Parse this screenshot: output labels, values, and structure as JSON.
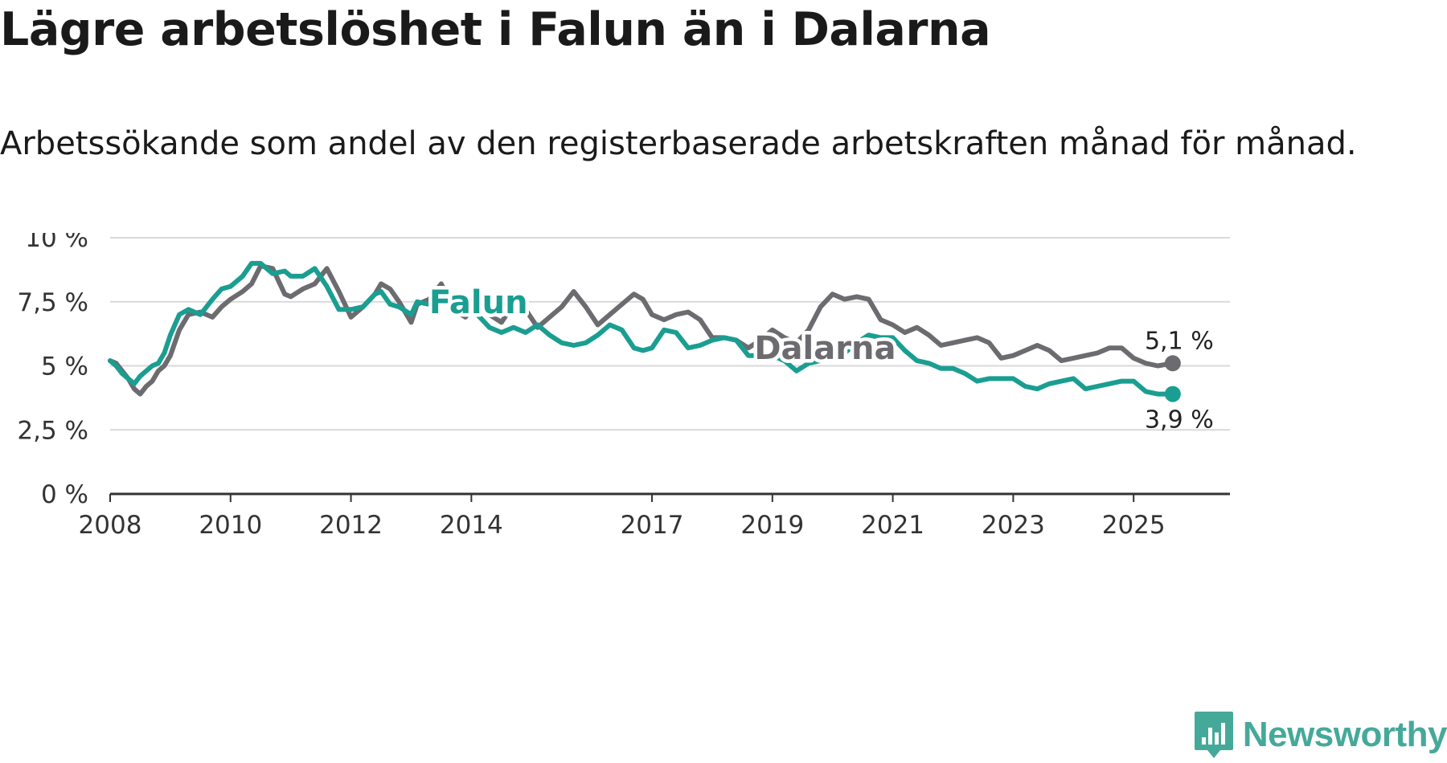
{
  "title": "Lägre arbetslöshet i Falun än i Dalarna",
  "subtitle": "Arbetssökande som andel av den registerbaserade arbetskraften månad för månad.",
  "brand": {
    "name": "Newsworthy",
    "color": "#45a99a",
    "icon": "newsworthy-logo-icon"
  },
  "chart_data": {
    "type": "line",
    "title": "Lägre arbetslöshet i Falun än i Dalarna",
    "xlabel": "",
    "ylabel": "",
    "ylim": [
      0,
      10
    ],
    "xlim": [
      2008,
      2026.6
    ],
    "grid": true,
    "y_ticks": [
      0,
      2.5,
      5,
      7.5,
      10
    ],
    "y_tick_labels": [
      "0 %",
      "2,5 %",
      "5 %",
      "7,5 %",
      "10 %"
    ],
    "x_ticks": [
      2008,
      2010,
      2012,
      2014,
      2017,
      2019,
      2021,
      2023,
      2025
    ],
    "x_tick_labels": [
      "2008",
      "2010",
      "2012",
      "2014",
      "2017",
      "2019",
      "2021",
      "2023",
      "2025"
    ],
    "series": [
      {
        "name": "Dalarna",
        "label": "Dalarna",
        "color": "#6b6b70",
        "end_label": "5,1 %",
        "x": [
          2008.0,
          2008.1,
          2008.2,
          2008.3,
          2008.4,
          2008.5,
          2008.6,
          2008.7,
          2008.8,
          2008.9,
          2009.0,
          2009.15,
          2009.3,
          2009.5,
          2009.7,
          2009.85,
          2010.0,
          2010.2,
          2010.35,
          2010.5,
          2010.7,
          2010.9,
          2011.0,
          2011.2,
          2011.4,
          2011.6,
          2011.8,
          2012.0,
          2012.2,
          2012.4,
          2012.5,
          2012.65,
          2012.8,
          2013.0,
          2013.1,
          2013.3,
          2013.5,
          2013.7,
          2013.9,
          2014.1,
          2014.3,
          2014.5,
          2014.7,
          2014.9,
          2015.1,
          2015.3,
          2015.5,
          2015.7,
          2015.9,
          2016.1,
          2016.3,
          2016.5,
          2016.7,
          2016.85,
          2017.0,
          2017.2,
          2017.4,
          2017.6,
          2017.8,
          2018.0,
          2018.2,
          2018.4,
          2018.6,
          2018.8,
          2019.0,
          2019.2,
          2019.4,
          2019.6,
          2019.8,
          2020.0,
          2020.2,
          2020.4,
          2020.6,
          2020.8,
          2021.0,
          2021.2,
          2021.4,
          2021.6,
          2021.8,
          2022.0,
          2022.2,
          2022.4,
          2022.6,
          2022.8,
          2023.0,
          2023.2,
          2023.4,
          2023.6,
          2023.8,
          2024.0,
          2024.2,
          2024.4,
          2024.6,
          2024.8,
          2025.0,
          2025.2,
          2025.4,
          2025.65
        ],
        "values": [
          5.2,
          5.1,
          4.8,
          4.5,
          4.1,
          3.9,
          4.2,
          4.4,
          4.8,
          5.0,
          5.4,
          6.4,
          7.0,
          7.1,
          6.9,
          7.3,
          7.6,
          7.9,
          8.2,
          8.9,
          8.8,
          7.8,
          7.7,
          8.0,
          8.2,
          8.8,
          7.9,
          6.9,
          7.3,
          7.8,
          8.2,
          8.0,
          7.5,
          6.7,
          7.4,
          7.6,
          8.2,
          7.2,
          6.9,
          7.5,
          7.0,
          6.7,
          7.4,
          7.2,
          6.5,
          6.9,
          7.3,
          7.9,
          7.3,
          6.6,
          7.0,
          7.4,
          7.8,
          7.6,
          7.0,
          6.8,
          7.0,
          7.1,
          6.8,
          6.1,
          6.1,
          6.0,
          5.7,
          6.0,
          6.4,
          6.1,
          5.9,
          6.4,
          7.3,
          7.8,
          7.6,
          7.7,
          7.6,
          6.8,
          6.6,
          6.3,
          6.5,
          6.2,
          5.8,
          5.9,
          6.0,
          6.1,
          5.9,
          5.3,
          5.4,
          5.6,
          5.8,
          5.6,
          5.2,
          5.3,
          5.4,
          5.5,
          5.7,
          5.7,
          5.3,
          5.1,
          5.0,
          5.1
        ]
      },
      {
        "name": "Falun",
        "label": "Falun",
        "color": "#1a9e91",
        "end_label": "3,9 %",
        "x": [
          2008.0,
          2008.1,
          2008.2,
          2008.3,
          2008.4,
          2008.5,
          2008.6,
          2008.7,
          2008.8,
          2008.9,
          2009.0,
          2009.15,
          2009.3,
          2009.5,
          2009.7,
          2009.85,
          2010.0,
          2010.2,
          2010.35,
          2010.5,
          2010.7,
          2010.9,
          2011.0,
          2011.2,
          2011.4,
          2011.6,
          2011.8,
          2012.0,
          2012.2,
          2012.4,
          2012.5,
          2012.65,
          2012.8,
          2013.0,
          2013.1,
          2013.3,
          2013.5,
          2013.7,
          2013.9,
          2014.1,
          2014.3,
          2014.5,
          2014.7,
          2014.9,
          2015.1,
          2015.3,
          2015.5,
          2015.7,
          2015.9,
          2016.1,
          2016.3,
          2016.5,
          2016.7,
          2016.85,
          2017.0,
          2017.2,
          2017.4,
          2017.6,
          2017.8,
          2018.0,
          2018.2,
          2018.4,
          2018.6,
          2018.8,
          2019.0,
          2019.2,
          2019.4,
          2019.6,
          2019.8,
          2020.0,
          2020.2,
          2020.4,
          2020.6,
          2020.8,
          2021.0,
          2021.2,
          2021.4,
          2021.6,
          2021.8,
          2022.0,
          2022.2,
          2022.4,
          2022.6,
          2022.8,
          2023.0,
          2023.2,
          2023.4,
          2023.6,
          2023.8,
          2024.0,
          2024.2,
          2024.4,
          2024.6,
          2024.8,
          2025.0,
          2025.2,
          2025.4,
          2025.65
        ],
        "values": [
          5.2,
          5.0,
          4.7,
          4.5,
          4.3,
          4.6,
          4.8,
          5.0,
          5.1,
          5.5,
          6.2,
          7.0,
          7.2,
          7.0,
          7.6,
          8.0,
          8.1,
          8.5,
          9.0,
          9.0,
          8.6,
          8.7,
          8.5,
          8.5,
          8.8,
          8.1,
          7.2,
          7.2,
          7.3,
          7.8,
          7.9,
          7.4,
          7.3,
          7.0,
          7.5,
          7.4,
          7.8,
          7.4,
          7.2,
          7.0,
          6.5,
          6.3,
          6.5,
          6.3,
          6.6,
          6.2,
          5.9,
          5.8,
          5.9,
          6.2,
          6.6,
          6.4,
          5.7,
          5.6,
          5.7,
          6.4,
          6.3,
          5.7,
          5.8,
          6.0,
          6.1,
          6.0,
          5.4,
          5.4,
          5.4,
          5.2,
          4.8,
          5.1,
          5.2,
          5.4,
          5.5,
          5.9,
          6.2,
          6.1,
          6.1,
          5.6,
          5.2,
          5.1,
          4.9,
          4.9,
          4.7,
          4.4,
          4.5,
          4.5,
          4.5,
          4.2,
          4.1,
          4.3,
          4.4,
          4.5,
          4.1,
          4.2,
          4.3,
          4.4,
          4.4,
          4.0,
          3.9,
          3.9
        ]
      }
    ]
  }
}
